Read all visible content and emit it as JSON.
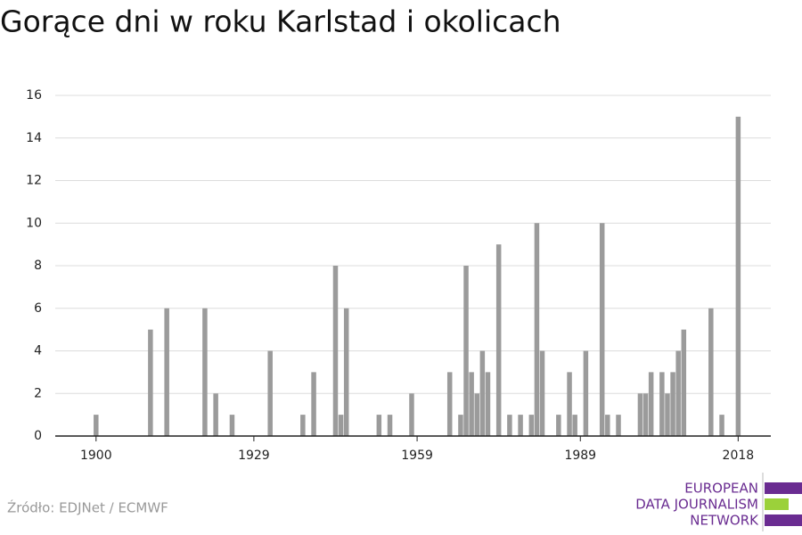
{
  "chart_data": {
    "type": "bar",
    "title": "Gorące dni w roku Karlstad i okolicach",
    "source": "Źródło: EDJNet / ECMWF",
    "x": [
      1900,
      1910,
      1913,
      1920,
      1922,
      1925,
      1932,
      1938,
      1940,
      1944,
      1945,
      1946,
      1952,
      1954,
      1958,
      1965,
      1967,
      1968,
      1969,
      1970,
      1971,
      1972,
      1974,
      1976,
      1978,
      1980,
      1981,
      1982,
      1985,
      1987,
      1988,
      1990,
      1993,
      1994,
      1996,
      2000,
      2001,
      2002,
      2004,
      2005,
      2006,
      2007,
      2008,
      2013,
      2015,
      2018
    ],
    "values": [
      1,
      5,
      6,
      6,
      2,
      1,
      4,
      1,
      3,
      8,
      1,
      6,
      1,
      1,
      2,
      3,
      1,
      8,
      3,
      2,
      4,
      3,
      9,
      1,
      1,
      1,
      10,
      4,
      1,
      3,
      1,
      4,
      10,
      1,
      1,
      2,
      2,
      3,
      3,
      2,
      3,
      4,
      5,
      6,
      1,
      15
    ],
    "color": "#9b9b9b",
    "xlim": [
      1893,
      2024.5
    ],
    "xticks": [
      1900,
      1929,
      1959,
      1989,
      2018
    ],
    "ylim": [
      0,
      16
    ],
    "yticks": [
      0,
      2,
      4,
      6,
      8,
      10,
      12,
      14,
      16
    ],
    "grid": true
  },
  "logo": {
    "lines": [
      "EUROPEAN",
      "DATA JOURNALISM",
      "NETWORK"
    ]
  }
}
